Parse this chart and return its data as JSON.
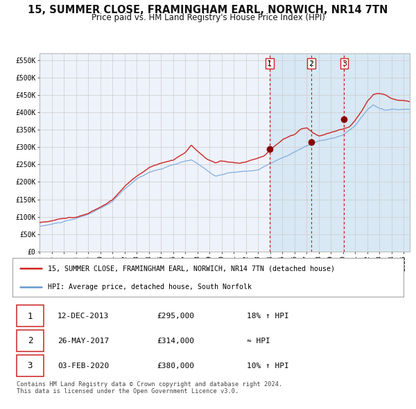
{
  "title": "15, SUMMER CLOSE, FRAMINGHAM EARL, NORWICH, NR14 7TN",
  "subtitle": "Price paid vs. HM Land Registry's House Price Index (HPI)",
  "title_fontsize": 10.5,
  "subtitle_fontsize": 8.5,
  "ylabel_ticks": [
    "£0",
    "£50K",
    "£100K",
    "£150K",
    "£200K",
    "£250K",
    "£300K",
    "£350K",
    "£400K",
    "£450K",
    "£500K",
    "£550K"
  ],
  "ylabel_vals": [
    0,
    50000,
    100000,
    150000,
    200000,
    250000,
    300000,
    350000,
    400000,
    450000,
    500000,
    550000
  ],
  "xlim_start": 1995.0,
  "xlim_end": 2025.5,
  "ylim_min": 0,
  "ylim_max": 570000,
  "background_color": "#ffffff",
  "plot_bg_color": "#eef2fa",
  "shaded_region_color": "#d8e8f4",
  "sale_dates": [
    2013.95,
    2017.4,
    2020.09
  ],
  "sale_prices": [
    295000,
    314000,
    380000
  ],
  "sale_labels": [
    "1",
    "2",
    "3"
  ],
  "vline_color": "#cc0000",
  "sale_marker_color": "#880000",
  "legend_entries": [
    "15, SUMMER CLOSE, FRAMINGHAM EARL, NORWICH, NR14 7TN (detached house)",
    "HPI: Average price, detached house, South Norfolk"
  ],
  "legend_line_colors": [
    "#cc2222",
    "#6699cc"
  ],
  "table_rows": [
    [
      "1",
      "12-DEC-2013",
      "£295,000",
      "18% ↑ HPI"
    ],
    [
      "2",
      "26-MAY-2017",
      "£314,000",
      "≈ HPI"
    ],
    [
      "3",
      "03-FEB-2020",
      "£380,000",
      "10% ↑ HPI"
    ]
  ],
  "footer": "Contains HM Land Registry data © Crown copyright and database right 2024.\nThis data is licensed under the Open Government Licence v3.0.",
  "grid_color": "#cccccc",
  "red_line_color": "#cc2222",
  "blue_line_color": "#7aaadd"
}
